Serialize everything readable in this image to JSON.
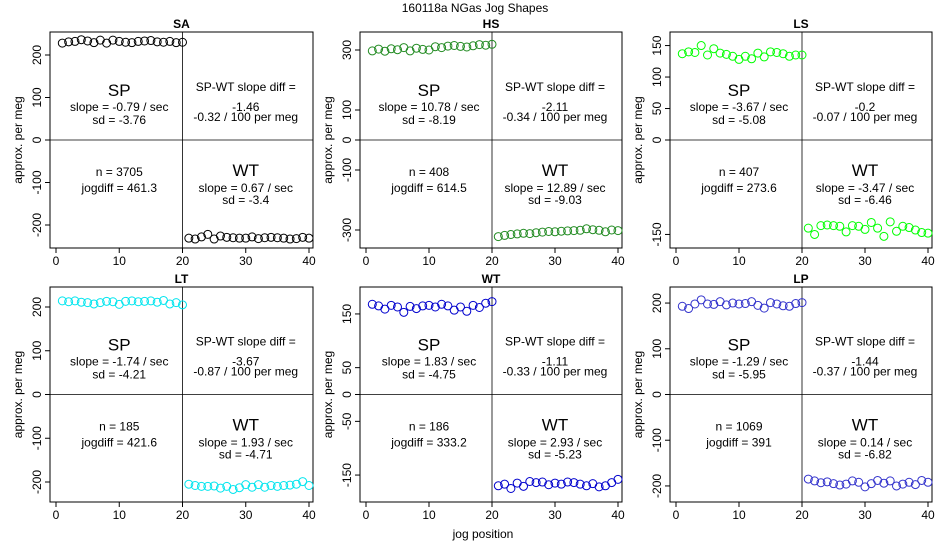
{
  "page": {
    "title": "160118a    NGas Jog Shapes",
    "xlabel": "jog position"
  },
  "chart_data": [
    {
      "type": "scatter",
      "title": "SA",
      "ylabel": "approx. per meg",
      "xlim": [
        0,
        40
      ],
      "ylim": [
        -240,
        240
      ],
      "xticks": [
        0,
        10,
        20,
        30,
        40
      ],
      "yticks": [
        -200,
        -100,
        0,
        100,
        200
      ],
      "y_sp": [
        228,
        231,
        232,
        236,
        233,
        229,
        235,
        228,
        235,
        232,
        230,
        229,
        232,
        233,
        234,
        231,
        230,
        232,
        229,
        230
      ],
      "y_wt": [
        -231,
        -233,
        -228,
        -222,
        -233,
        -226,
        -229,
        -230,
        -231,
        -231,
        -228,
        -232,
        -230,
        -229,
        -230,
        -231,
        -233,
        -232,
        -229,
        -231
      ],
      "color": "#000000",
      "sp_label": "SP",
      "sp_slope": "slope = -0.79 / sec",
      "sp_sd": "sd = -3.76",
      "diff_label": "SP-WT slope diff =",
      "diff_value": "-1.46",
      "diff_per_meg": "-0.32 / 100 per meg",
      "n": "n = 3705",
      "jogdiff": "jogdiff = 461.3",
      "wt_label": "WT",
      "wt_slope": "slope = 0.67 / sec",
      "wt_sd": "sd = -3.4"
    },
    {
      "type": "scatter",
      "title": "HS",
      "ylabel": "approx. per meg",
      "xlim": [
        0,
        40
      ],
      "ylim": [
        -340,
        340
      ],
      "xticks": [
        0,
        10,
        20,
        30,
        40
      ],
      "yticks": [
        -300,
        -100,
        0,
        100,
        300
      ],
      "y_sp": [
        297,
        303,
        296,
        304,
        301,
        308,
        297,
        306,
        302,
        300,
        311,
        308,
        313,
        315,
        312,
        310,
        314,
        318,
        316,
        319
      ],
      "y_wt": [
        -322,
        -318,
        -315,
        -313,
        -311,
        -312,
        -309,
        -307,
        -305,
        -306,
        -304,
        -303,
        -302,
        -301,
        -296,
        -299,
        -301,
        -306,
        -300,
        -302
      ],
      "color": "#228B22",
      "sp_label": "SP",
      "sp_slope": "slope = 10.78 / sec",
      "sp_sd": "sd = -8.19",
      "diff_label": "SP-WT slope diff =",
      "diff_value": "-2.11",
      "diff_per_meg": "-0.34 / 100 per meg",
      "n": "n = 408",
      "jogdiff": "jogdiff = 614.5",
      "wt_label": "WT",
      "wt_slope": "slope = 12.89 / sec",
      "wt_sd": "sd = -9.03"
    },
    {
      "type": "scatter",
      "title": "LS",
      "ylabel": "approx. per meg",
      "xlim": [
        0,
        40
      ],
      "ylim": [
        -162,
        162
      ],
      "xticks": [
        0,
        10,
        20,
        30,
        40
      ],
      "yticks": [
        -150,
        0,
        50,
        100,
        150
      ],
      "y_sp": [
        137,
        140,
        139,
        150,
        135,
        145,
        138,
        136,
        133,
        128,
        133,
        129,
        138,
        132,
        140,
        139,
        137,
        133,
        135,
        135
      ],
      "y_wt": [
        -140,
        -150,
        -136,
        -135,
        -136,
        -137,
        -146,
        -136,
        -137,
        -142,
        -131,
        -140,
        -153,
        -130,
        -145,
        -137,
        -139,
        -143,
        -147,
        -148
      ],
      "color": "#00FF00",
      "sp_label": "SP",
      "sp_slope": "slope = -3.67 / sec",
      "sp_sd": "sd = -5.08",
      "diff_label": "SP-WT slope diff =",
      "diff_value": "-0.2",
      "diff_per_meg": "-0.07 / 100 per meg",
      "n": "n = 407",
      "jogdiff": "jogdiff = 273.6",
      "wt_label": "WT",
      "wt_slope": "slope = -3.47 / sec",
      "wt_sd": "sd = -6.46"
    },
    {
      "type": "scatter",
      "title": "LT",
      "ylabel": "approx. per meg",
      "xlim": [
        0,
        40
      ],
      "ylim": [
        -232,
        232
      ],
      "xticks": [
        0,
        10,
        20,
        30,
        40
      ],
      "yticks": [
        -200,
        -100,
        0,
        100,
        200
      ],
      "y_sp": [
        214,
        212,
        214,
        211,
        210,
        207,
        210,
        213,
        212,
        206,
        213,
        214,
        212,
        213,
        214,
        211,
        215,
        207,
        210,
        205
      ],
      "y_wt": [
        -205,
        -208,
        -210,
        -210,
        -209,
        -214,
        -210,
        -217,
        -213,
        -206,
        -212,
        -206,
        -212,
        -208,
        -210,
        -208,
        -207,
        -205,
        -199,
        -208
      ],
      "color": "#00E5EE",
      "sp_label": "SP",
      "sp_slope": "slope = -1.74 / sec",
      "sp_sd": "sd = -4.21",
      "diff_label": "SP-WT slope diff =",
      "diff_value": "-3.67",
      "diff_per_meg": "-0.87 / 100 per meg",
      "n": "n = 185",
      "jogdiff": "jogdiff = 421.6",
      "wt_label": "WT",
      "wt_slope": "slope = 1.93 / sec",
      "wt_sd": "sd = -4.71"
    },
    {
      "type": "scatter",
      "title": "WT",
      "ylabel": "approx. per meg",
      "xlim": [
        0,
        40
      ],
      "ylim": [
        -189,
        189
      ],
      "xticks": [
        0,
        10,
        20,
        30,
        40
      ],
      "yticks": [
        -150,
        -50,
        0,
        50,
        150
      ],
      "y_sp": [
        168,
        165,
        159,
        166,
        163,
        153,
        164,
        160,
        165,
        166,
        163,
        168,
        165,
        157,
        163,
        155,
        166,
        162,
        170,
        173
      ],
      "y_wt": [
        -170,
        -167,
        -175,
        -165,
        -171,
        -162,
        -164,
        -163,
        -168,
        -165,
        -167,
        -163,
        -164,
        -167,
        -170,
        -166,
        -172,
        -170,
        -164,
        -158
      ],
      "color": "#0000CD",
      "sp_label": "SP",
      "sp_slope": "slope = 1.83 / sec",
      "sp_sd": "sd = -4.75",
      "diff_label": "SP-WT slope diff =",
      "diff_value": "-1.11",
      "diff_per_meg": "-0.33 / 100 per meg",
      "n": "n = 186",
      "jogdiff": "jogdiff = 333.2",
      "wt_label": "WT",
      "wt_slope": "slope = 2.93 / sec",
      "wt_sd": "sd = -5.23"
    },
    {
      "type": "scatter",
      "title": "LP",
      "ylabel": "approx. per meg",
      "xlim": [
        0,
        40
      ],
      "ylim": [
        -222,
        222
      ],
      "xticks": [
        0,
        10,
        20,
        30,
        40
      ],
      "yticks": [
        -200,
        -100,
        0,
        100,
        200
      ],
      "y_sp": [
        193,
        188,
        198,
        207,
        198,
        197,
        203,
        196,
        200,
        198,
        199,
        203,
        195,
        189,
        201,
        198,
        194,
        193,
        199,
        201
      ],
      "y_wt": [
        -185,
        -189,
        -193,
        -191,
        -195,
        -198,
        -196,
        -189,
        -192,
        -202,
        -195,
        -188,
        -194,
        -189,
        -200,
        -196,
        -192,
        -197,
        -188,
        -192
      ],
      "color": "#3333CC",
      "sp_label": "SP",
      "sp_slope": "slope = -1.29 / sec",
      "sp_sd": "sd = -5.95",
      "diff_label": "SP-WT slope diff =",
      "diff_value": "-1.44",
      "diff_per_meg": "-0.37 / 100 per meg",
      "n": "n = 1069",
      "jogdiff": "jogdiff = 391",
      "wt_label": "WT",
      "wt_slope": "slope = 0.14 / sec",
      "wt_sd": "sd = -6.82"
    }
  ]
}
